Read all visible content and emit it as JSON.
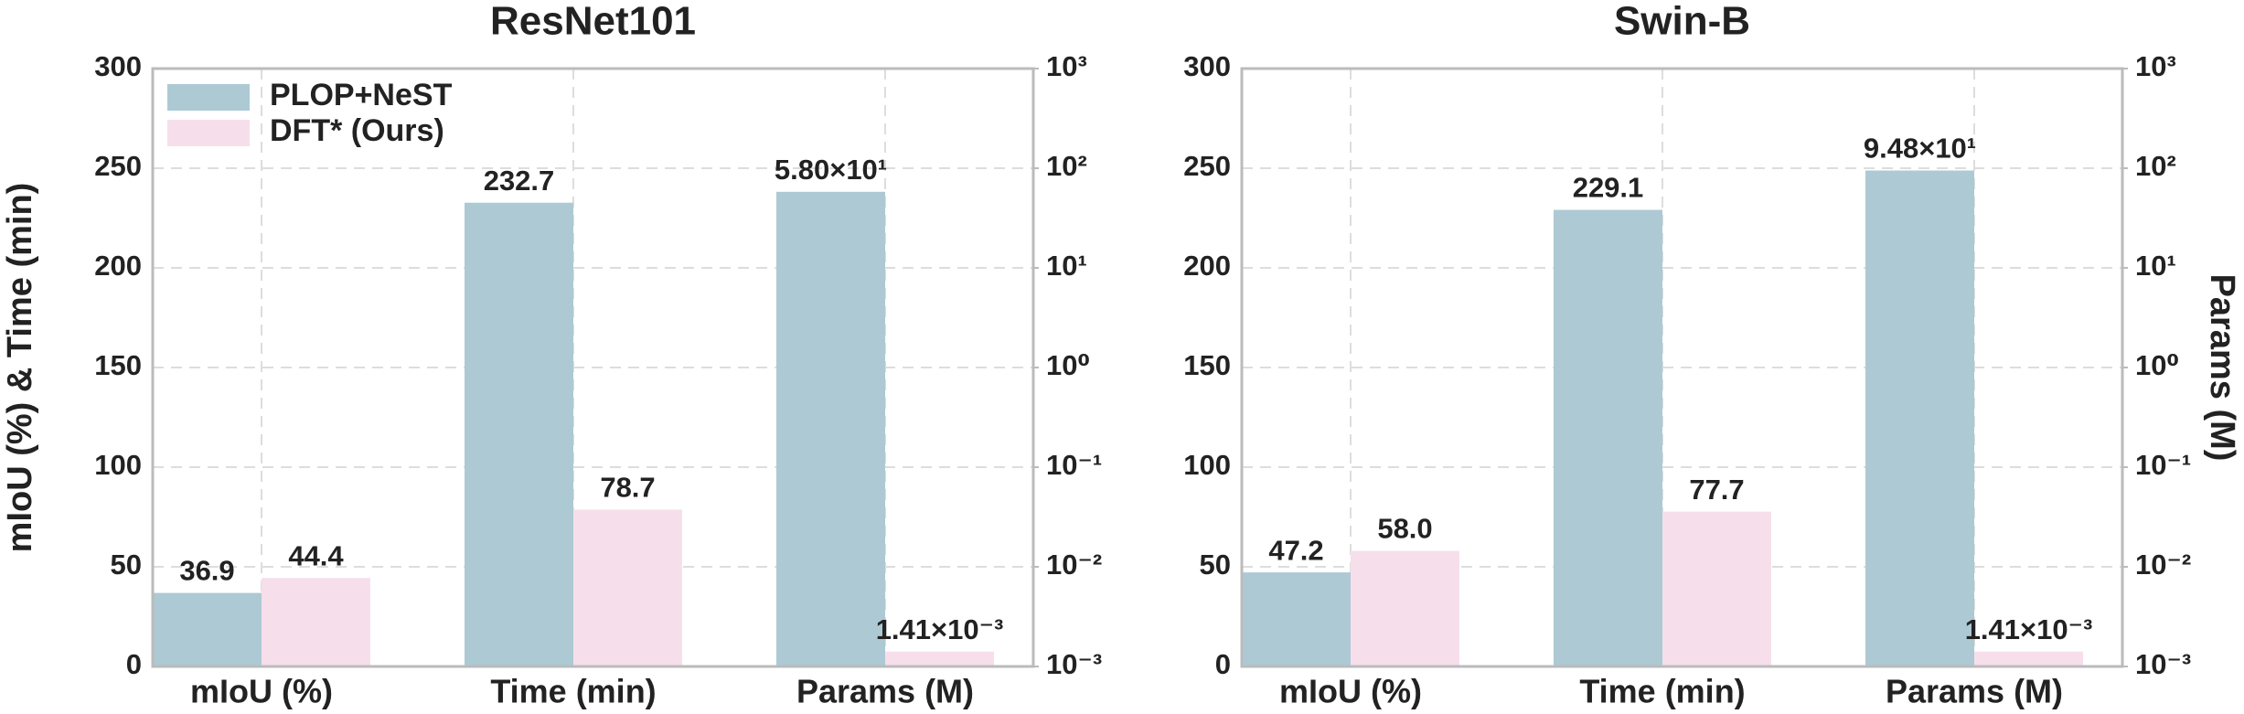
{
  "chart_data": [
    {
      "type": "bar",
      "title": "ResNet101",
      "ylabel": "mIoU (%) & Time (min)",
      "categories": [
        "mIoU (%)",
        "Time (min)",
        "Params (M)"
      ],
      "axis_by_category": [
        "y",
        "y",
        "y2"
      ],
      "series": [
        {
          "name": "PLOP+NeST",
          "color": "#adc9d4",
          "values": [
            36.9,
            232.7,
            58.0
          ],
          "value_labels": [
            "36.9",
            "232.7",
            "5.80×10¹"
          ]
        },
        {
          "name": "DFT* (Ours)",
          "color": "#f6dfeb",
          "values": [
            44.4,
            78.7,
            0.00141
          ],
          "value_labels": [
            "44.4",
            "78.7",
            "1.41×10⁻³"
          ]
        }
      ],
      "ylim": [
        0,
        300
      ],
      "yticks": [
        0,
        50,
        100,
        150,
        200,
        250,
        300
      ],
      "y2lim": [
        0.001,
        1000
      ],
      "y2log": true,
      "y2ticks": [
        {
          "value": 0.001,
          "label": "10⁻³"
        },
        {
          "value": 0.01,
          "label": "10⁻²"
        },
        {
          "value": 0.1,
          "label": "10⁻¹"
        },
        {
          "value": 1,
          "label": "10⁰"
        },
        {
          "value": 10,
          "label": "10¹"
        },
        {
          "value": 100,
          "label": "10²"
        },
        {
          "value": 1000,
          "label": "10³"
        }
      ],
      "grid": true,
      "legend": "upper left"
    },
    {
      "type": "bar",
      "title": "Swin-B",
      "y2label": "Params (M)",
      "categories": [
        "mIoU (%)",
        "Time (min)",
        "Params (M)"
      ],
      "axis_by_category": [
        "y",
        "y",
        "y2"
      ],
      "series": [
        {
          "name": "PLOP+NeST",
          "color": "#adc9d4",
          "values": [
            47.2,
            229.1,
            94.8
          ],
          "value_labels": [
            "47.2",
            "229.1",
            "9.48×10¹"
          ]
        },
        {
          "name": "DFT* (Ours)",
          "color": "#f6dfeb",
          "values": [
            58.0,
            77.7,
            0.00141
          ],
          "value_labels": [
            "58.0",
            "77.7",
            "1.41×10⁻³"
          ]
        }
      ],
      "ylim": [
        0,
        300
      ],
      "yticks": [
        0,
        50,
        100,
        150,
        200,
        250,
        300
      ],
      "y2lim": [
        0.001,
        1000
      ],
      "y2log": true,
      "y2ticks": [
        {
          "value": 0.001,
          "label": "10⁻³"
        },
        {
          "value": 0.01,
          "label": "10⁻²"
        },
        {
          "value": 0.1,
          "label": "10⁻¹"
        },
        {
          "value": 1,
          "label": "10⁰"
        },
        {
          "value": 10,
          "label": "10¹"
        },
        {
          "value": 100,
          "label": "10²"
        },
        {
          "value": 1000,
          "label": "10³"
        }
      ],
      "grid": true
    }
  ]
}
